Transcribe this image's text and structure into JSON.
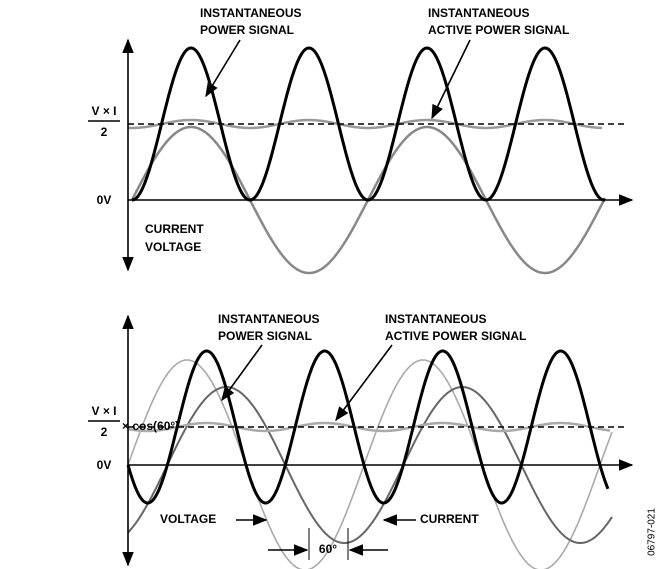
{
  "top": {
    "power_label": [
      "INSTANTANEOUS",
      "POWER SIGNAL"
    ],
    "active_label": [
      "INSTANTANEOUS",
      "ACTIVE POWER SIGNAL"
    ],
    "level_numerator": "V × I",
    "level_denominator": "2",
    "zero": "0V",
    "signals": [
      "CURRENT",
      "VOLTAGE"
    ]
  },
  "bottom": {
    "power_label": [
      "INSTANTANEOUS",
      "POWER SIGNAL"
    ],
    "active_label": [
      "INSTANTANEOUS",
      "ACTIVE POWER SIGNAL"
    ],
    "level_numerator": "V × I",
    "level_denominator": "2",
    "level_factor": "× cos(60°)",
    "zero": "0V",
    "voltage": "VOLTAGE",
    "current": "CURRENT",
    "phase": "60°"
  },
  "figure_id": "06797-021"
}
